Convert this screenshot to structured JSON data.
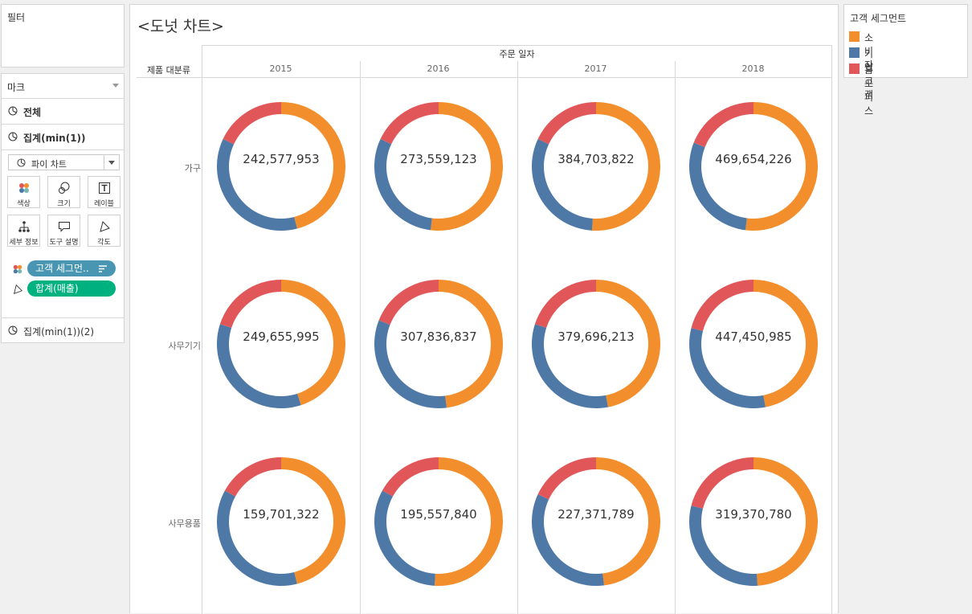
{
  "filters": {
    "title": "필터"
  },
  "marks": {
    "title": "마크",
    "rows": [
      {
        "label": "전체",
        "bold": true
      },
      {
        "label": "집계(min(1))",
        "bold": true
      },
      {
        "label": "집계(min(1))(2)",
        "bold": false
      }
    ],
    "mark_type": "파이 차트",
    "buttons": [
      {
        "label": "색상",
        "icon": "color-icon"
      },
      {
        "label": "크기",
        "icon": "size-icon"
      },
      {
        "label": "레이블",
        "icon": "label-icon"
      },
      {
        "label": "세부 정보",
        "icon": "detail-icon"
      },
      {
        "label": "도구 설명",
        "icon": "tooltip-icon"
      },
      {
        "label": "각도",
        "icon": "angle-icon"
      }
    ],
    "pills": [
      {
        "label": "고객 세그먼..",
        "color": "#4996b2",
        "icon": "color-icon"
      },
      {
        "label": "합계(매출)",
        "color": "#00b180",
        "icon": "angle-icon"
      }
    ]
  },
  "legend": {
    "title": "고객 세그먼트",
    "items": [
      {
        "label": "소비자",
        "color": "#f28e2b"
      },
      {
        "label": "기업 고객",
        "color": "#4e79a7"
      },
      {
        "label": "홈 오피스",
        "color": "#e15759"
      }
    ]
  },
  "sheet": {
    "title": "<도넛 차트>",
    "column_header": "주문 일자",
    "row_header": "제품 대분류"
  },
  "chart_data": {
    "type": "pie",
    "subtype": "donut",
    "columns": [
      "2015",
      "2016",
      "2017",
      "2018"
    ],
    "rows": [
      "가구",
      "사무기기",
      "사무용품"
    ],
    "series_names": [
      "소비자",
      "기업 고객",
      "홈 오피스"
    ],
    "colors": [
      "#f28e2b",
      "#4e79a7",
      "#e15759"
    ],
    "totals": [
      [
        "242,577,953",
        "273,559,123",
        "384,703,822",
        "469,654,226"
      ],
      [
        "249,655,995",
        "307,836,837",
        "379,696,213",
        "447,450,985"
      ],
      [
        "159,701,322",
        "195,557,840",
        "227,371,789",
        "319,370,780"
      ]
    ],
    "shares": [
      [
        [
          0.46,
          0.36,
          0.18
        ],
        [
          0.52,
          0.3,
          0.18
        ],
        [
          0.51,
          0.31,
          0.18
        ],
        [
          0.52,
          0.29,
          0.19
        ]
      ],
      [
        [
          0.45,
          0.35,
          0.2
        ],
        [
          0.48,
          0.33,
          0.19
        ],
        [
          0.47,
          0.33,
          0.2
        ],
        [
          0.47,
          0.32,
          0.21
        ]
      ],
      [
        [
          0.46,
          0.37,
          0.17
        ],
        [
          0.51,
          0.32,
          0.17
        ],
        [
          0.48,
          0.34,
          0.18
        ],
        [
          0.49,
          0.3,
          0.21
        ]
      ]
    ]
  }
}
